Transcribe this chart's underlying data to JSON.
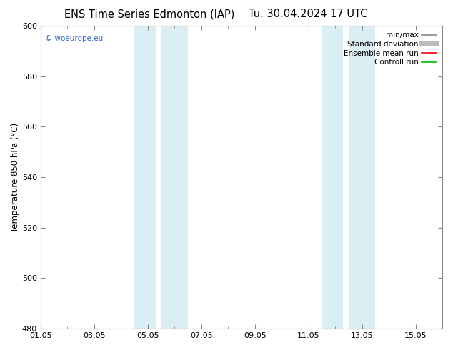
{
  "title_left": "ENS Time Series Edmonton (IAP)",
  "title_right": "Tu. 30.04.2024 17 UTC",
  "ylabel": "Temperature 850 hPa (°C)",
  "ylim": [
    480,
    600
  ],
  "yticks": [
    480,
    500,
    520,
    540,
    560,
    580,
    600
  ],
  "xlim_start": 0.0,
  "xlim_end": 15.0,
  "xtick_labels": [
    "01.05",
    "03.05",
    "05.05",
    "07.05",
    "09.05",
    "11.05",
    "13.05",
    "15.05"
  ],
  "xtick_positions": [
    0,
    2,
    4,
    6,
    8,
    10,
    12,
    14
  ],
  "shade_bands": [
    {
      "x_start": 3.5,
      "x_end": 4.3,
      "color": "#dbeef4"
    },
    {
      "x_start": 4.5,
      "x_end": 5.5,
      "color": "#dbeef4"
    },
    {
      "x_start": 10.5,
      "x_end": 11.3,
      "color": "#dbeef4"
    },
    {
      "x_start": 11.5,
      "x_end": 12.5,
      "color": "#dbeef4"
    }
  ],
  "watermark": "© woeurope.eu",
  "watermark_color": "#3366cc",
  "legend_items": [
    {
      "label": "min/max",
      "color": "#888888",
      "lw": 1.2
    },
    {
      "label": "Standard deviation",
      "color": "#bbbbbb",
      "lw": 5
    },
    {
      "label": "Ensemble mean run",
      "color": "#ff0000",
      "lw": 1.2
    },
    {
      "label": "Controll run",
      "color": "#00bb00",
      "lw": 1.2
    }
  ],
  "bg_color": "#ffffff",
  "title_fontsize": 10.5,
  "axis_label_fontsize": 8.5,
  "tick_fontsize": 8,
  "legend_fontsize": 7.5
}
